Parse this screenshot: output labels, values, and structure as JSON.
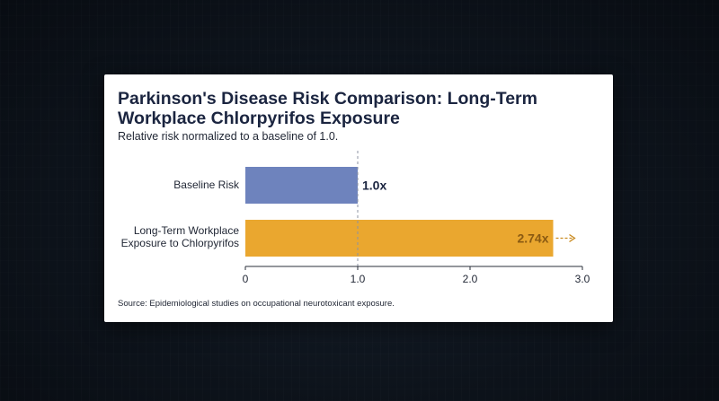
{
  "chart_data": {
    "type": "bar",
    "orientation": "horizontal",
    "title": "Parkinson's Disease Risk Comparison: Long-Term Workplace Chlorpyrifos Exposure",
    "subtitle": "Relative risk normalized to a baseline of 1.0.",
    "categories": [
      "Baseline Risk",
      "Long-Term Workplace Exposure to Chlorpyrifos"
    ],
    "category_lines": [
      [
        "Baseline Risk"
      ],
      [
        "Long-Term Workplace",
        "Exposure to Chlorpyrifos"
      ]
    ],
    "values": [
      1.0,
      2.74
    ],
    "data_labels": [
      "1.0x",
      "2.74x"
    ],
    "colors": [
      "#6e83bd",
      "#eaa72f"
    ],
    "xlim": [
      0,
      3.0
    ],
    "xticks": [
      0,
      1.0,
      2.0,
      3.0
    ],
    "xtick_labels": [
      "0",
      "1.0",
      "2.0",
      "3.0"
    ],
    "reference_line": 1.0,
    "source": "Source: Epidemiological studies on occupational neurotoxicant exposure."
  }
}
